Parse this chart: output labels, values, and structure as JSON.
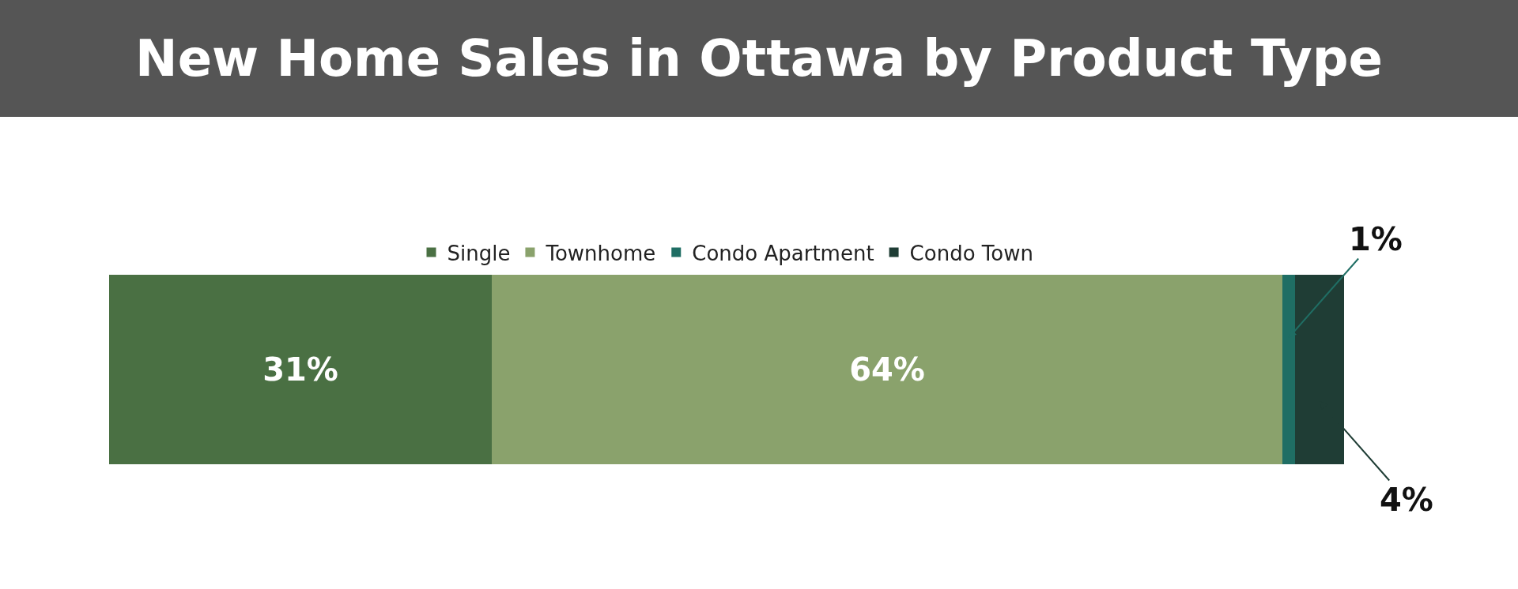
{
  "chart_data": {
    "type": "bar",
    "title": "New Home Sales in Ottawa by Product Type",
    "orientation": "horizontal",
    "stacked": true,
    "categories": [
      null
    ],
    "xlim": [
      0,
      100
    ],
    "tick_labels": false,
    "legend": "top",
    "series": [
      {
        "name": "Single",
        "color": "#4a7043",
        "values": [
          31
        ],
        "value_labels": [
          "31%"
        ]
      },
      {
        "name": "Townhome",
        "color": "#8aa26c",
        "values": [
          64
        ],
        "value_labels": [
          "64%"
        ]
      },
      {
        "name": "Condo Apartment",
        "color": "#1f6e64",
        "values": [
          1
        ],
        "value_labels": [
          "1%"
        ]
      },
      {
        "name": "Condo Town",
        "color": "#1f3d35",
        "values": [
          4
        ],
        "value_labels": [
          "4%"
        ]
      }
    ]
  }
}
